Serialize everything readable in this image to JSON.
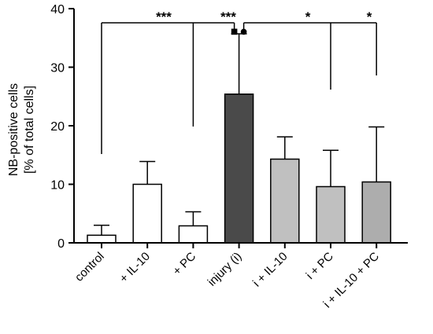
{
  "chart_data": {
    "type": "bar",
    "ylabel_line1": "NB-positive cells",
    "ylabel_line2": "[% of total cells]",
    "ylim": [
      0,
      40
    ],
    "yticks": [
      "0",
      "10",
      "20",
      "30",
      "40"
    ],
    "categories": [
      "control",
      "+ IL-10",
      "+ PC",
      "injury (i)",
      "i + IL-10",
      "i + PC",
      "i + IL-10 + PC"
    ],
    "values": [
      1.3,
      10.0,
      2.9,
      25.4,
      14.3,
      9.6,
      10.4
    ],
    "errors": [
      1.7,
      3.9,
      2.4,
      10.3,
      3.8,
      6.2,
      9.4
    ],
    "bar_colors": [
      "#ffffff",
      "#ffffff",
      "#ffffff",
      "#4a4a4a",
      "#c0c0c0",
      "#c0c0c0",
      "#adadad"
    ],
    "significance": [
      {
        "label": "***",
        "from": 0,
        "to": 3
      },
      {
        "label": "***",
        "from": 2,
        "to": 3
      },
      {
        "label": "*",
        "from": 3,
        "to": 5
      },
      {
        "label": "*",
        "from": 3,
        "to": 6
      }
    ],
    "center_markers": [
      "■",
      "●"
    ],
    "grid": false
  }
}
